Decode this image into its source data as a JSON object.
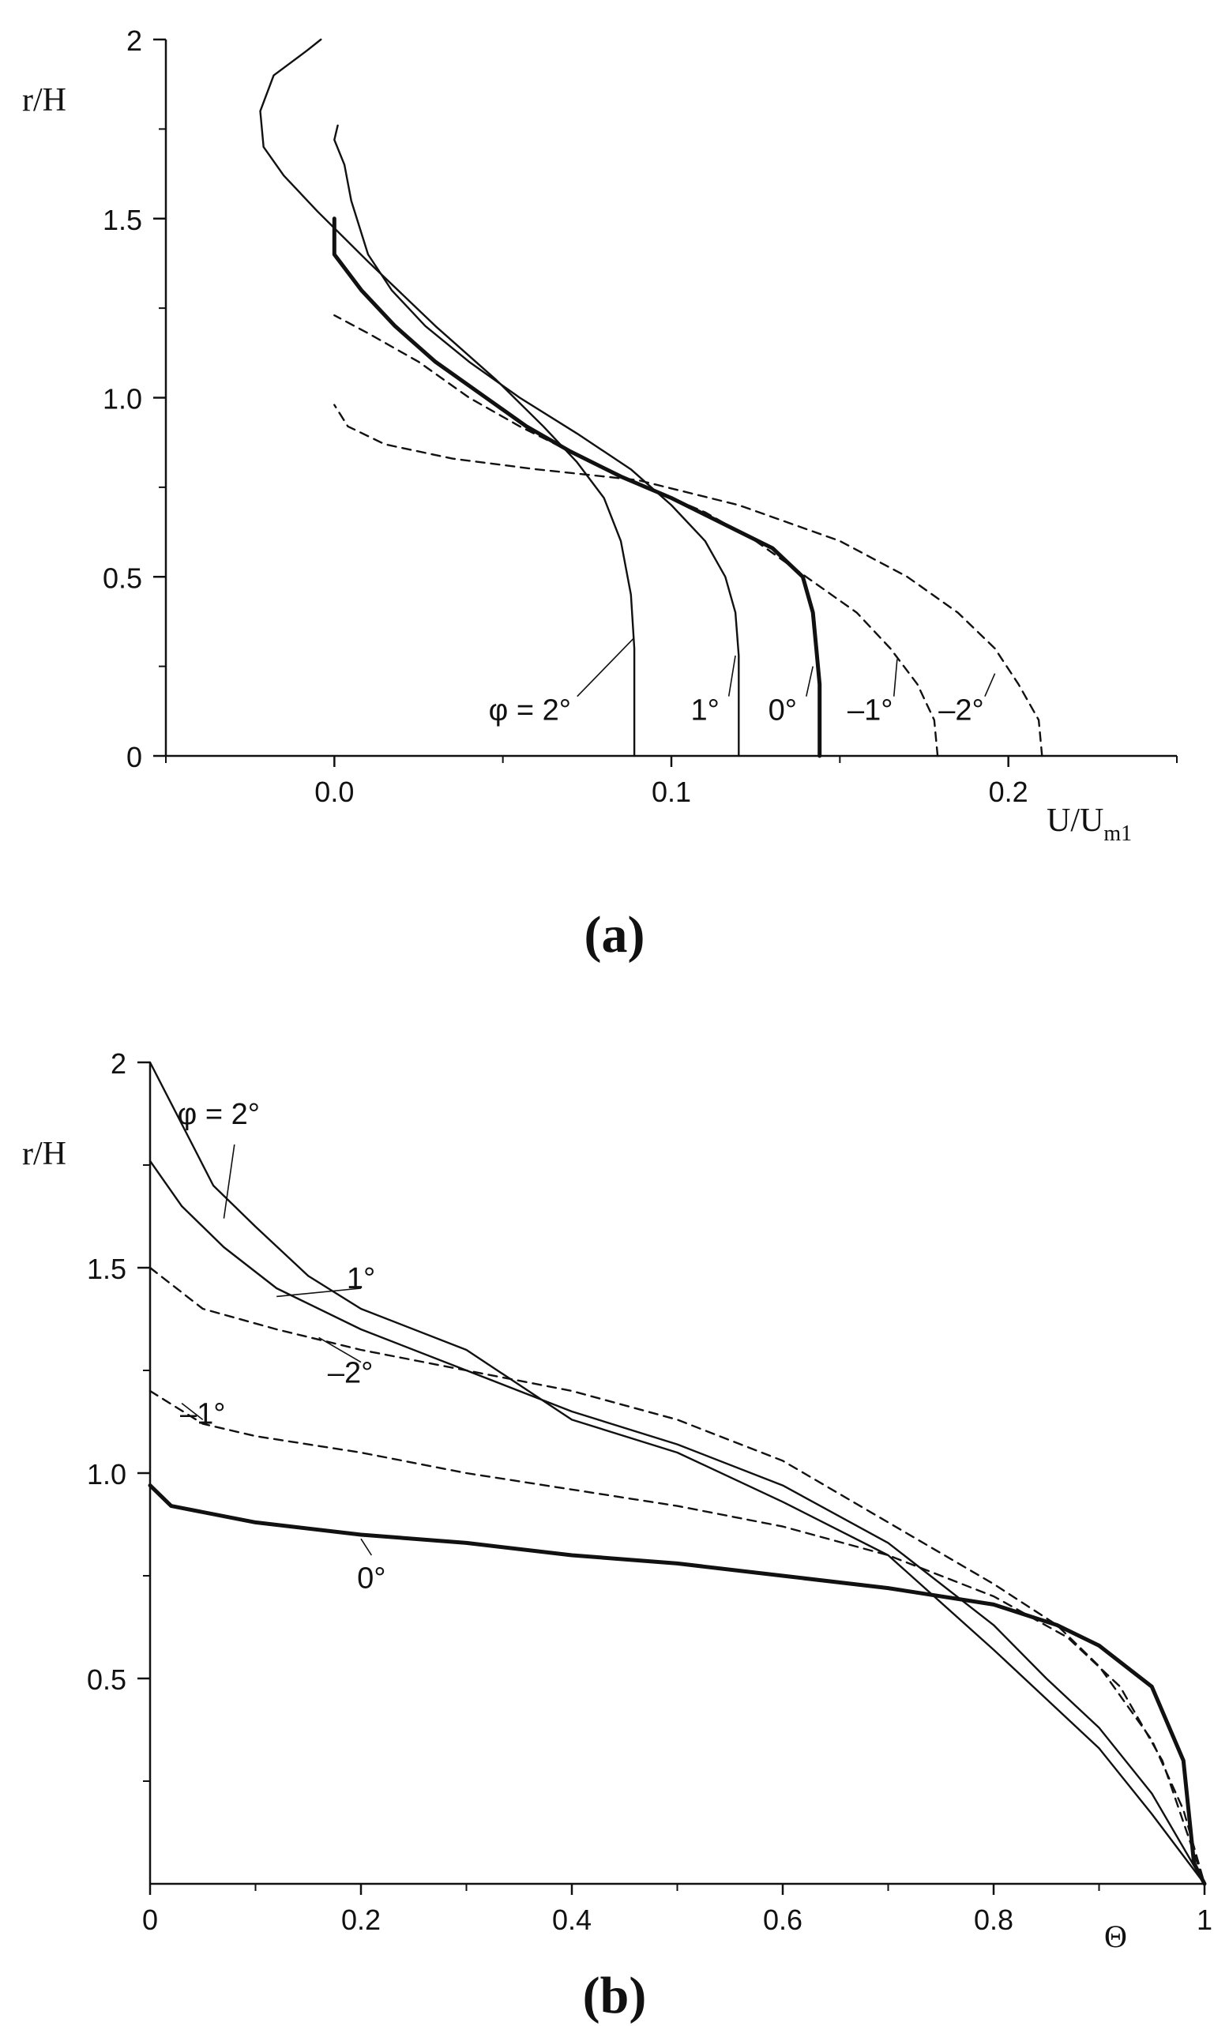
{
  "chart_data": [
    {
      "panel": "a",
      "panel_label": "(a)",
      "type": "line",
      "xlabel": "U/U",
      "xlabel_sub": "m1",
      "ylabel": "r/H",
      "xlim": [
        -0.05,
        0.25
      ],
      "ylim": [
        0,
        2
      ],
      "xticks": [
        0.0,
        0.1,
        0.2
      ],
      "xtick_labels": [
        "0.0",
        "0.1",
        "0.2"
      ],
      "xticks_minor": [
        -0.05,
        0.05,
        0.15,
        0.25
      ],
      "yticks": [
        0,
        0.5,
        1.0,
        1.5,
        2
      ],
      "ytick_labels": [
        "0",
        "0.5",
        "1.0",
        "1.5",
        "2"
      ],
      "yticks_minor": [
        0.25,
        0.75,
        1.25,
        1.75
      ],
      "grid": false,
      "series": [
        {
          "name": "φ = 2°",
          "style": "solid",
          "weight": "normal",
          "label_pos": [
            0.058,
            0.1
          ],
          "leader_to": [
            0.089,
            0.33
          ],
          "points": [
            [
              0.089,
              0
            ],
            [
              0.089,
              0.3
            ],
            [
              0.088,
              0.45
            ],
            [
              0.085,
              0.6
            ],
            [
              0.08,
              0.72
            ],
            [
              0.072,
              0.82
            ],
            [
              0.062,
              0.92
            ],
            [
              0.048,
              1.05
            ],
            [
              0.03,
              1.2
            ],
            [
              0.01,
              1.38
            ],
            [
              -0.005,
              1.52
            ],
            [
              -0.015,
              1.62
            ],
            [
              -0.021,
              1.7
            ],
            [
              -0.022,
              1.8
            ],
            [
              -0.018,
              1.9
            ],
            [
              -0.008,
              1.97
            ],
            [
              -0.004,
              2.0
            ]
          ]
        },
        {
          "name": "1°",
          "style": "solid",
          "weight": "normal",
          "label_pos": [
            0.11,
            0.1
          ],
          "leader_to": [
            0.119,
            0.28
          ],
          "points": [
            [
              0.12,
              0
            ],
            [
              0.12,
              0.28
            ],
            [
              0.119,
              0.4
            ],
            [
              0.116,
              0.5
            ],
            [
              0.11,
              0.6
            ],
            [
              0.1,
              0.7
            ],
            [
              0.088,
              0.8
            ],
            [
              0.072,
              0.9
            ],
            [
              0.055,
              1.0
            ],
            [
              0.04,
              1.1
            ],
            [
              0.027,
              1.2
            ],
            [
              0.017,
              1.3
            ],
            [
              0.01,
              1.4
            ],
            [
              0.005,
              1.55
            ],
            [
              0.003,
              1.65
            ],
            [
              0.0,
              1.72
            ],
            [
              0.001,
              1.76
            ]
          ]
        },
        {
          "name": "0°",
          "style": "solid",
          "weight": "bold",
          "label_pos": [
            0.133,
            0.1
          ],
          "leader_to": [
            0.142,
            0.25
          ],
          "points": [
            [
              0.144,
              0
            ],
            [
              0.144,
              0.2
            ],
            [
              0.143,
              0.3
            ],
            [
              0.142,
              0.4
            ],
            [
              0.139,
              0.5
            ],
            [
              0.13,
              0.58
            ],
            [
              0.115,
              0.65
            ],
            [
              0.1,
              0.72
            ],
            [
              0.085,
              0.78
            ],
            [
              0.07,
              0.85
            ],
            [
              0.057,
              0.92
            ],
            [
              0.045,
              1.0
            ],
            [
              0.03,
              1.1
            ],
            [
              0.018,
              1.2
            ],
            [
              0.008,
              1.3
            ],
            [
              0.0,
              1.4
            ],
            [
              0.0,
              1.5
            ]
          ]
        },
        {
          "name": "–1°",
          "style": "dashed",
          "weight": "normal",
          "label_pos": [
            0.159,
            0.1
          ],
          "leader_to": [
            0.167,
            0.27
          ],
          "points": [
            [
              0.179,
              0
            ],
            [
              0.178,
              0.1
            ],
            [
              0.173,
              0.2
            ],
            [
              0.165,
              0.3
            ],
            [
              0.155,
              0.4
            ],
            [
              0.14,
              0.5
            ],
            [
              0.125,
              0.6
            ],
            [
              0.11,
              0.68
            ],
            [
              0.09,
              0.76
            ],
            [
              0.07,
              0.85
            ],
            [
              0.055,
              0.92
            ],
            [
              0.04,
              1.0
            ],
            [
              0.025,
              1.1
            ],
            [
              0.01,
              1.18
            ],
            [
              0.0,
              1.23
            ]
          ]
        },
        {
          "name": "–2°",
          "style": "dashed",
          "weight": "normal",
          "label_pos": [
            0.186,
            0.1
          ],
          "leader_to": [
            0.196,
            0.23
          ],
          "points": [
            [
              0.21,
              0
            ],
            [
              0.209,
              0.1
            ],
            [
              0.203,
              0.2
            ],
            [
              0.196,
              0.3
            ],
            [
              0.185,
              0.4
            ],
            [
              0.17,
              0.5
            ],
            [
              0.15,
              0.6
            ],
            [
              0.12,
              0.7
            ],
            [
              0.09,
              0.77
            ],
            [
              0.06,
              0.8
            ],
            [
              0.035,
              0.83
            ],
            [
              0.015,
              0.87
            ],
            [
              0.004,
              0.92
            ],
            [
              0.0,
              0.98
            ]
          ]
        }
      ]
    },
    {
      "panel": "b",
      "panel_label": "(b)",
      "type": "line",
      "xlabel": "Θ",
      "ylabel": "r/H",
      "xlim": [
        0,
        1
      ],
      "ylim": [
        0,
        2
      ],
      "xticks": [
        0,
        0.2,
        0.4,
        0.6,
        0.8,
        1
      ],
      "xtick_labels": [
        "0",
        "0.2",
        "0.4",
        "0.6",
        "0.8",
        "1"
      ],
      "xticks_minor": [
        0.1,
        0.3,
        0.5,
        0.7,
        0.9
      ],
      "yticks": [
        0.5,
        1.0,
        1.5,
        2
      ],
      "ytick_labels": [
        "0.5",
        "1.0",
        "1.5",
        "2"
      ],
      "yticks_minor": [
        0.25,
        0.75,
        1.25,
        1.75
      ],
      "grid": false,
      "series": [
        {
          "name": "φ = 2°",
          "style": "solid",
          "weight": "normal",
          "label_pos": [
            0.065,
            1.85
          ],
          "leader_from": [
            0.08,
            1.8
          ],
          "leader_to": [
            0.07,
            1.62
          ],
          "points": [
            [
              0,
              2.0
            ],
            [
              0.03,
              1.85
            ],
            [
              0.06,
              1.7
            ],
            [
              0.1,
              1.6
            ],
            [
              0.15,
              1.48
            ],
            [
              0.2,
              1.4
            ],
            [
              0.3,
              1.3
            ],
            [
              0.4,
              1.13
            ],
            [
              0.5,
              1.05
            ],
            [
              0.6,
              0.93
            ],
            [
              0.7,
              0.8
            ],
            [
              0.8,
              0.57
            ],
            [
              0.85,
              0.45
            ],
            [
              0.9,
              0.33
            ],
            [
              0.95,
              0.17
            ],
            [
              1.0,
              0.0
            ]
          ]
        },
        {
          "name": "1°",
          "style": "solid",
          "weight": "normal",
          "label_pos": [
            0.2,
            1.45
          ],
          "leader_from": [
            0.2,
            1.45
          ],
          "leader_to": [
            0.12,
            1.43
          ],
          "points": [
            [
              0,
              1.76
            ],
            [
              0.03,
              1.65
            ],
            [
              0.07,
              1.55
            ],
            [
              0.12,
              1.45
            ],
            [
              0.2,
              1.35
            ],
            [
              0.3,
              1.25
            ],
            [
              0.4,
              1.15
            ],
            [
              0.5,
              1.07
            ],
            [
              0.6,
              0.97
            ],
            [
              0.7,
              0.83
            ],
            [
              0.8,
              0.63
            ],
            [
              0.85,
              0.5
            ],
            [
              0.9,
              0.38
            ],
            [
              0.95,
              0.22
            ],
            [
              1.0,
              0.0
            ]
          ]
        },
        {
          "name": "–2°",
          "style": "dashed",
          "weight": "normal",
          "label_pos": [
            0.19,
            1.22
          ],
          "leader_from": [
            0.2,
            1.27
          ],
          "leader_to": [
            0.16,
            1.33
          ],
          "points": [
            [
              0,
              1.5
            ],
            [
              0.05,
              1.4
            ],
            [
              0.12,
              1.35
            ],
            [
              0.2,
              1.3
            ],
            [
              0.3,
              1.25
            ],
            [
              0.4,
              1.2
            ],
            [
              0.5,
              1.13
            ],
            [
              0.6,
              1.03
            ],
            [
              0.7,
              0.88
            ],
            [
              0.8,
              0.73
            ],
            [
              0.86,
              0.63
            ],
            [
              0.9,
              0.53
            ],
            [
              0.95,
              0.35
            ],
            [
              0.98,
              0.18
            ],
            [
              1.0,
              0.0
            ]
          ]
        },
        {
          "name": "–1°",
          "style": "dashed",
          "weight": "normal",
          "label_pos": [
            0.05,
            1.12
          ],
          "leader_from": [
            0.05,
            1.13
          ],
          "leader_to": [
            0.03,
            1.17
          ],
          "points": [
            [
              0,
              1.2
            ],
            [
              0.05,
              1.12
            ],
            [
              0.1,
              1.09
            ],
            [
              0.2,
              1.05
            ],
            [
              0.3,
              1.0
            ],
            [
              0.4,
              0.96
            ],
            [
              0.5,
              0.92
            ],
            [
              0.6,
              0.87
            ],
            [
              0.7,
              0.8
            ],
            [
              0.8,
              0.7
            ],
            [
              0.87,
              0.6
            ],
            [
              0.92,
              0.48
            ],
            [
              0.96,
              0.3
            ],
            [
              1.0,
              0.0
            ]
          ]
        },
        {
          "name": "0°",
          "style": "solid",
          "weight": "bold",
          "label_pos": [
            0.21,
            0.72
          ],
          "leader_from": [
            0.21,
            0.8
          ],
          "leader_to": [
            0.2,
            0.84
          ],
          "points": [
            [
              0,
              0.97
            ],
            [
              0.02,
              0.92
            ],
            [
              0.1,
              0.88
            ],
            [
              0.2,
              0.85
            ],
            [
              0.3,
              0.83
            ],
            [
              0.4,
              0.8
            ],
            [
              0.5,
              0.78
            ],
            [
              0.6,
              0.75
            ],
            [
              0.7,
              0.72
            ],
            [
              0.8,
              0.68
            ],
            [
              0.86,
              0.63
            ],
            [
              0.9,
              0.58
            ],
            [
              0.95,
              0.48
            ],
            [
              0.98,
              0.3
            ],
            [
              0.99,
              0.05
            ],
            [
              1.0,
              0.0
            ]
          ]
        }
      ]
    }
  ]
}
